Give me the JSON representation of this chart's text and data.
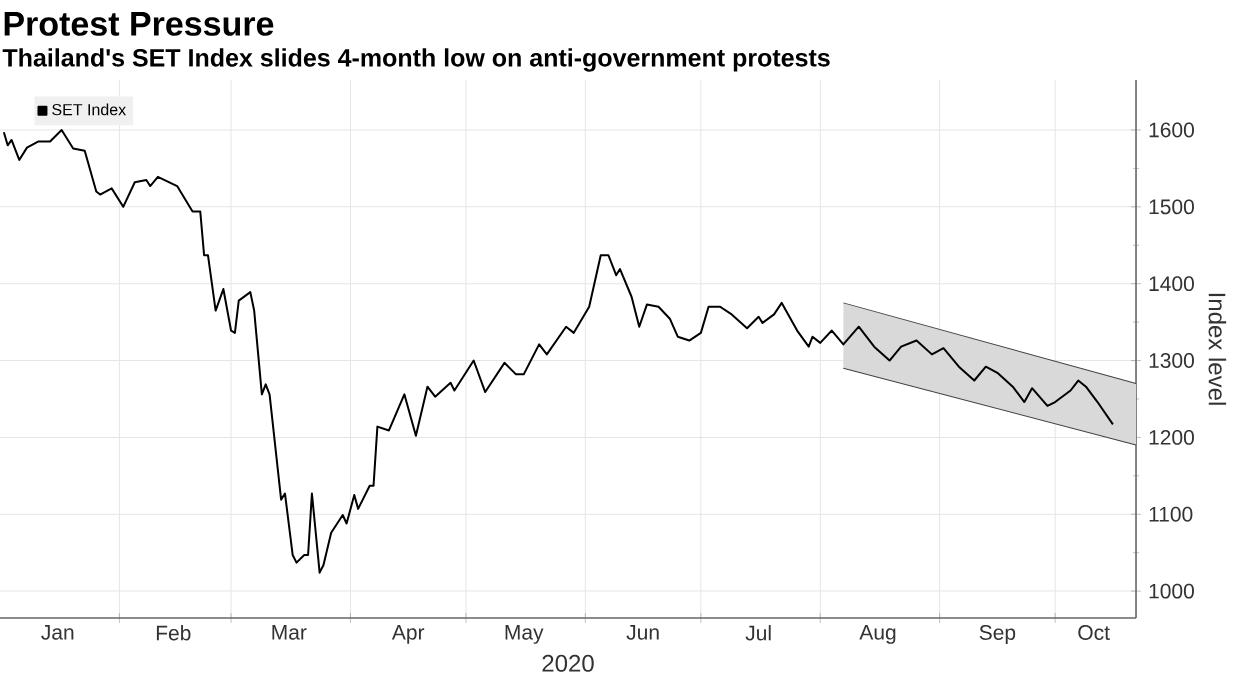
{
  "chart_data": {
    "type": "line",
    "title": "Protest Pressure",
    "subtitle": "Thailand's SET Index slides 4-month low on anti-government protests",
    "ylabel": "Index level",
    "xlabel": "2020",
    "series": [
      {
        "name": "SET Index",
        "color": "#000000",
        "x": [
          "2020-01-02",
          "2020-01-03",
          "2020-01-04",
          "2020-01-06",
          "2020-01-08",
          "2020-01-11",
          "2020-01-14",
          "2020-01-17",
          "2020-01-20",
          "2020-01-23",
          "2020-01-26",
          "2020-01-27",
          "2020-01-30",
          "2020-02-02",
          "2020-02-05",
          "2020-02-08",
          "2020-02-09",
          "2020-02-11",
          "2020-02-16",
          "2020-02-20",
          "2020-02-22",
          "2020-02-23",
          "2020-02-24",
          "2020-02-26",
          "2020-02-28",
          "2020-03-01",
          "2020-03-02",
          "2020-03-03",
          "2020-03-06",
          "2020-03-07",
          "2020-03-09",
          "2020-03-10",
          "2020-03-11",
          "2020-03-14",
          "2020-03-15",
          "2020-03-17",
          "2020-03-18",
          "2020-03-20",
          "2020-03-21",
          "2020-03-22",
          "2020-03-24",
          "2020-03-25",
          "2020-03-27",
          "2020-03-30",
          "2020-03-31",
          "2020-04-02",
          "2020-04-03",
          "2020-04-06",
          "2020-04-07",
          "2020-04-08",
          "2020-04-11",
          "2020-04-15",
          "2020-04-18",
          "2020-04-21",
          "2020-04-23",
          "2020-04-27",
          "2020-04-28",
          "2020-05-03",
          "2020-05-06",
          "2020-05-11",
          "2020-05-14",
          "2020-05-16",
          "2020-05-20",
          "2020-05-22",
          "2020-05-27",
          "2020-05-29",
          "2020-06-02",
          "2020-06-05",
          "2020-06-07",
          "2020-06-09",
          "2020-06-10",
          "2020-06-13",
          "2020-06-15",
          "2020-06-17",
          "2020-06-20",
          "2020-06-23",
          "2020-06-25",
          "2020-06-28",
          "2020-07-01",
          "2020-07-03",
          "2020-07-06",
          "2020-07-09",
          "2020-07-13",
          "2020-07-16",
          "2020-07-17",
          "2020-07-20",
          "2020-07-22",
          "2020-07-24",
          "2020-07-26",
          "2020-07-29",
          "2020-07-30",
          "2020-08-01",
          "2020-08-04",
          "2020-08-07",
          "2020-08-11",
          "2020-08-15",
          "2020-08-19",
          "2020-08-22",
          "2020-08-26",
          "2020-08-30",
          "2020-09-02",
          "2020-09-06",
          "2020-09-10",
          "2020-09-13",
          "2020-09-16",
          "2020-09-20",
          "2020-09-23",
          "2020-09-25",
          "2020-09-29",
          "2020-10-01",
          "2020-10-05",
          "2020-10-07",
          "2020-10-09",
          "2020-10-12",
          "2020-10-16"
        ],
        "values": [
          1597,
          1580,
          1587,
          1561,
          1577,
          1585,
          1585,
          1600,
          1576,
          1573,
          1520,
          1516,
          1524,
          1500,
          1532,
          1535,
          1527,
          1539,
          1527,
          1494,
          1494,
          1437,
          1437,
          1365,
          1393,
          1339,
          1336,
          1378,
          1389,
          1365,
          1256,
          1269,
          1256,
          1119,
          1127,
          1047,
          1037,
          1047,
          1047,
          1127,
          1024,
          1034,
          1076,
          1099,
          1088,
          1125,
          1107,
          1137,
          1137,
          1214,
          1209,
          1256,
          1202,
          1266,
          1253,
          1271,
          1261,
          1300,
          1259,
          1297,
          1282,
          1282,
          1321,
          1308,
          1344,
          1336,
          1370,
          1437,
          1437,
          1411,
          1419,
          1383,
          1344,
          1373,
          1370,
          1354,
          1331,
          1326,
          1336,
          1370,
          1370,
          1360,
          1342,
          1357,
          1349,
          1360,
          1375,
          1357,
          1339,
          1318,
          1331,
          1323,
          1339,
          1321,
          1344,
          1318,
          1300,
          1318,
          1326,
          1308,
          1316,
          1292,
          1274,
          1292,
          1284,
          1266,
          1246,
          1264,
          1241,
          1246,
          1261,
          1274,
          1266,
          1246,
          1217
        ]
      },
      {
        "type": "line",
        "color": "#404040",
        "x": [
          "2020-08-07",
          "2020-10-22"
        ],
        "values": [
          1375,
          1270
        ],
        "lower": [
          1290,
          1190
        ],
        "upper": [
          1375,
          1270
        ]
      },
      {
        "type": "line",
        "color": "#404040",
        "x": [
          "2020-08-07",
          "2020-10-22"
        ],
        "values": [
          1290,
          1190
        ]
      }
    ],
    "xlim": [
      "2020-01-01",
      "2020-10-22"
    ],
    "xticks": [
      {
        "value": "2020-02-01",
        "label": null
      },
      {
        "value": "2020-03-01",
        "label": null
      },
      {
        "value": "2020-04-01",
        "label": null
      },
      {
        "value": "2020-05-01",
        "label": null
      },
      {
        "value": "2020-06-01",
        "label": null
      },
      {
        "value": "2020-07-01",
        "label": null
      },
      {
        "value": "2020-08-01",
        "label": null
      },
      {
        "value": "2020-09-01",
        "label": null
      },
      {
        "value": "2020-10-01",
        "label": null
      },
      {
        "value": "2020-01-16",
        "label": "Jan"
      },
      {
        "value": "2020-02-15",
        "label": "Feb"
      },
      {
        "value": "2020-03-16",
        "label": "Mar"
      },
      {
        "value": "2020-04-16",
        "label": "Apr"
      },
      {
        "value": "2020-05-16",
        "label": "May"
      },
      {
        "value": "2020-06-16",
        "label": "Jun"
      },
      {
        "value": "2020-07-16",
        "label": "Jul"
      },
      {
        "value": "2020-08-16",
        "label": "Aug"
      },
      {
        "value": "2020-09-16",
        "label": "Sep"
      },
      {
        "value": "2020-10-11",
        "label": "Oct"
      }
    ],
    "ylim": [
      965,
      1665
    ],
    "yticks": [
      1000,
      1100,
      1200,
      1300,
      1400,
      1500,
      1600
    ],
    "grid": true,
    "legend": "top left",
    "marker": "none",
    "line_style": "solid"
  }
}
